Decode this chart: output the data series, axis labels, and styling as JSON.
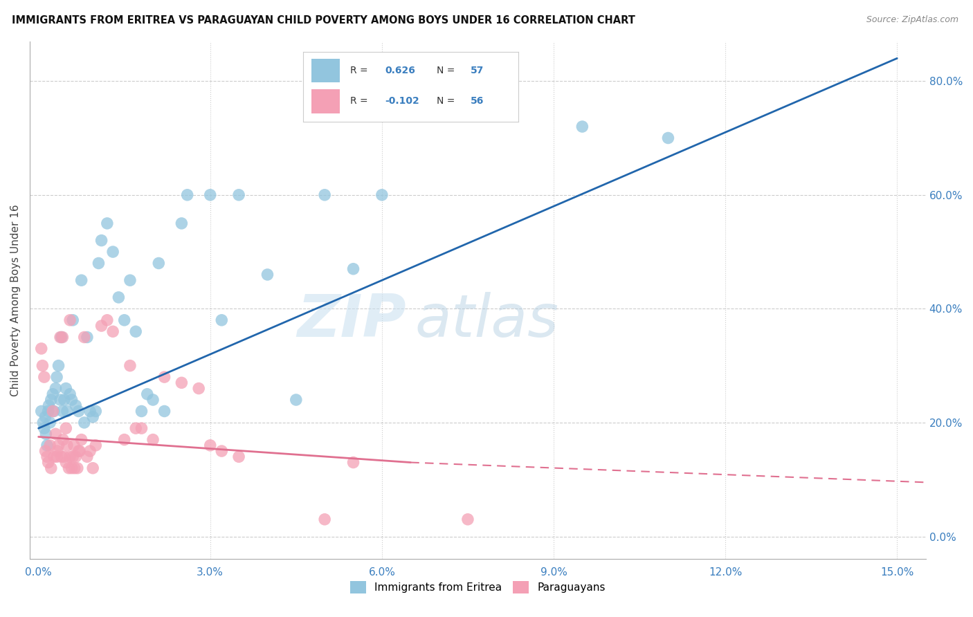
{
  "title": "IMMIGRANTS FROM ERITREA VS PARAGUAYAN CHILD POVERTY AMONG BOYS UNDER 16 CORRELATION CHART",
  "source": "Source: ZipAtlas.com",
  "xlabel_vals": [
    0.0,
    3.0,
    6.0,
    9.0,
    12.0,
    15.0
  ],
  "ylabel_vals": [
    0.0,
    20.0,
    40.0,
    60.0,
    80.0
  ],
  "xlim": [
    -0.15,
    15.5
  ],
  "ylim": [
    -4.0,
    87.0
  ],
  "ylabel": "Child Poverty Among Boys Under 16",
  "legend_R1": "R =  0.626",
  "legend_N1": "N = 57",
  "legend_R2": "R = -0.102",
  "legend_N2": "N = 56",
  "color_blue": "#92c5de",
  "color_pink": "#f4a0b5",
  "color_blue_line": "#2166ac",
  "color_pink_line": "#e07090",
  "watermark_ZIP": "ZIP",
  "watermark_atlas": "atlas",
  "blue_scatter_x": [
    0.05,
    0.08,
    0.1,
    0.12,
    0.13,
    0.15,
    0.17,
    0.18,
    0.2,
    0.22,
    0.25,
    0.27,
    0.3,
    0.32,
    0.35,
    0.38,
    0.4,
    0.42,
    0.45,
    0.48,
    0.5,
    0.55,
    0.58,
    0.6,
    0.65,
    0.7,
    0.75,
    0.8,
    0.85,
    0.9,
    0.95,
    1.0,
    1.05,
    1.1,
    1.2,
    1.3,
    1.4,
    1.5,
    1.6,
    1.7,
    1.8,
    1.9,
    2.0,
    2.1,
    2.2,
    2.5,
    2.6,
    3.0,
    3.2,
    3.5,
    4.0,
    4.5,
    5.0,
    5.5,
    6.0,
    9.5,
    11.0
  ],
  "blue_scatter_y": [
    22.0,
    20.0,
    19.0,
    21.0,
    18.0,
    16.0,
    22.0,
    23.0,
    20.0,
    24.0,
    25.0,
    22.0,
    26.0,
    28.0,
    30.0,
    24.0,
    35.0,
    22.0,
    24.0,
    26.0,
    22.0,
    25.0,
    24.0,
    38.0,
    23.0,
    22.0,
    45.0,
    20.0,
    35.0,
    22.0,
    21.0,
    22.0,
    48.0,
    52.0,
    55.0,
    50.0,
    42.0,
    38.0,
    45.0,
    36.0,
    22.0,
    25.0,
    24.0,
    48.0,
    22.0,
    55.0,
    60.0,
    60.0,
    38.0,
    60.0,
    46.0,
    24.0,
    60.0,
    47.0,
    60.0,
    72.0,
    70.0
  ],
  "pink_scatter_x": [
    0.05,
    0.07,
    0.1,
    0.12,
    0.15,
    0.17,
    0.2,
    0.22,
    0.25,
    0.27,
    0.3,
    0.33,
    0.35,
    0.38,
    0.4,
    0.43,
    0.45,
    0.48,
    0.5,
    0.53,
    0.55,
    0.58,
    0.6,
    0.63,
    0.65,
    0.68,
    0.7,
    0.75,
    0.8,
    0.85,
    0.9,
    0.95,
    1.0,
    1.1,
    1.2,
    1.3,
    1.5,
    1.6,
    1.7,
    1.8,
    2.0,
    2.2,
    2.5,
    2.8,
    3.0,
    3.2,
    3.5,
    5.0,
    5.5,
    7.5,
    0.32,
    0.42,
    0.48,
    0.55,
    0.62,
    0.72
  ],
  "pink_scatter_y": [
    33.0,
    30.0,
    28.0,
    15.0,
    14.0,
    13.0,
    16.0,
    12.0,
    22.0,
    14.0,
    18.0,
    15.0,
    16.0,
    35.0,
    14.0,
    17.0,
    14.0,
    13.0,
    16.0,
    12.0,
    14.0,
    12.0,
    14.0,
    12.0,
    14.0,
    12.0,
    15.0,
    17.0,
    35.0,
    14.0,
    15.0,
    12.0,
    16.0,
    37.0,
    38.0,
    36.0,
    17.0,
    30.0,
    19.0,
    19.0,
    17.0,
    28.0,
    27.0,
    26.0,
    16.0,
    15.0,
    14.0,
    3.0,
    13.0,
    3.0,
    14.0,
    35.0,
    19.0,
    38.0,
    16.0,
    15.0
  ],
  "blue_line_x0": 0.0,
  "blue_line_x1": 15.0,
  "blue_line_y0": 19.0,
  "blue_line_y1": 84.0,
  "pink_solid_x0": 0.0,
  "pink_solid_x1": 6.5,
  "pink_solid_y0": 17.5,
  "pink_solid_y1": 13.0,
  "pink_dash_x0": 6.5,
  "pink_dash_x1": 15.5,
  "pink_dash_y0": 13.0,
  "pink_dash_y1": 9.5
}
